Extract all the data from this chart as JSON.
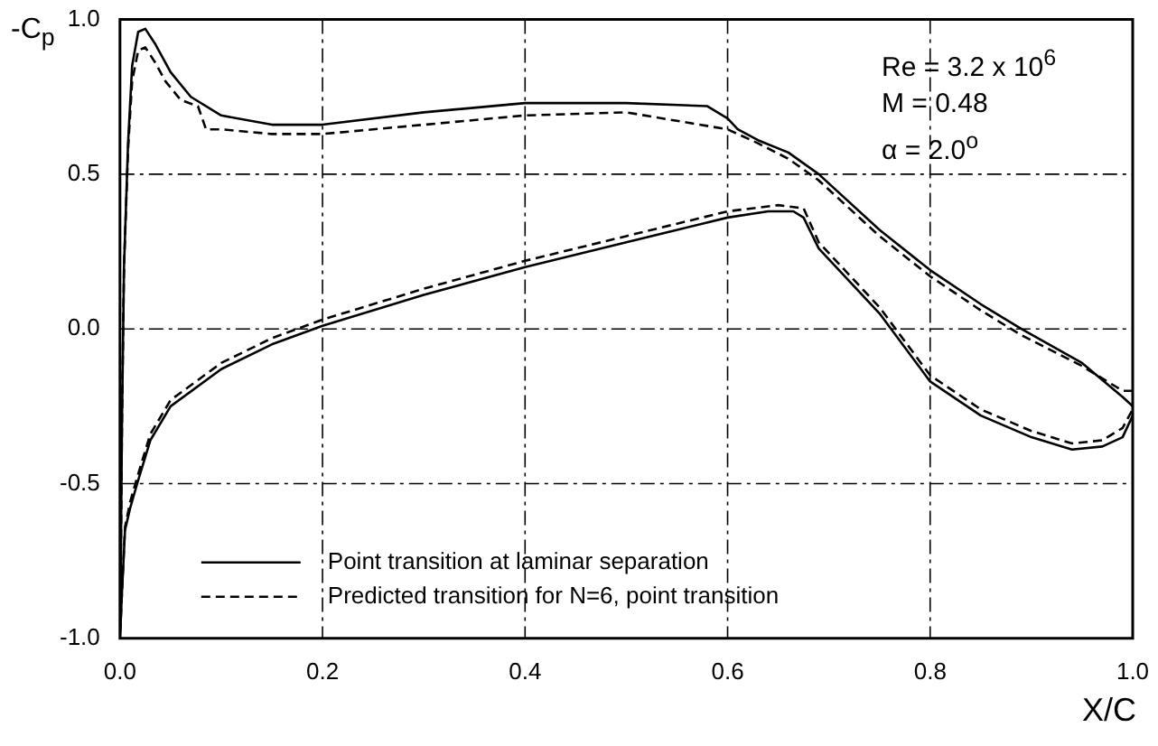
{
  "chart_data": {
    "type": "line",
    "xlabel": "X/C",
    "ylabel": "-C$_{p}$",
    "xlim": [
      0,
      1
    ],
    "ylim": [
      -1,
      1
    ],
    "xticks": [
      {
        "value": 0,
        "label": "0.0"
      },
      0.2,
      0.4,
      0.6,
      0.8,
      {
        "value": 1,
        "label": "1.0"
      }
    ],
    "yticks": [
      {
        "value": -1,
        "label": "-1.0"
      },
      -0.5,
      {
        "value": 0,
        "label": "0.0"
      },
      0.5,
      {
        "value": 1,
        "label": "1.0"
      }
    ],
    "grid": true,
    "legend": "bottom left",
    "marker": "none",
    "annotations": [
      "Re = 3.2 x 10$^{6}$",
      "M = 0.48",
      "α = 2.0$^{o}$"
    ],
    "series": [
      {
        "name": "Point transition at laminar separation",
        "color": "#000000",
        "line_style": "solid",
        "x": [
          1.0,
          0.99,
          0.95,
          0.89,
          0.85,
          0.8,
          0.75,
          0.69,
          0.66,
          0.63,
          0.61,
          0.6,
          0.58,
          0.5,
          0.4,
          0.3,
          0.2,
          0.15,
          0.1,
          0.07,
          0.05,
          0.035,
          0.025,
          0.018,
          0.012,
          0.008,
          0.004,
          0.002,
          0.001,
          0.0,
          0.002,
          0.005,
          0.01,
          0.017,
          0.03,
          0.05,
          0.1,
          0.15,
          0.2,
          0.3,
          0.4,
          0.5,
          0.6,
          0.64,
          0.665,
          0.675,
          0.69,
          0.75,
          0.8,
          0.85,
          0.9,
          0.94,
          0.97,
          0.99,
          1.0
        ],
        "values": [
          -0.25,
          -0.22,
          -0.11,
          0.0,
          0.08,
          0.19,
          0.32,
          0.5,
          0.57,
          0.61,
          0.645,
          0.68,
          0.72,
          0.73,
          0.73,
          0.7,
          0.66,
          0.66,
          0.69,
          0.75,
          0.83,
          0.92,
          0.97,
          0.96,
          0.85,
          0.6,
          0.2,
          -0.3,
          -0.7,
          -1.0,
          -0.85,
          -0.65,
          -0.58,
          -0.5,
          -0.36,
          -0.25,
          -0.13,
          -0.05,
          0.01,
          0.11,
          0.2,
          0.28,
          0.36,
          0.38,
          0.38,
          0.36,
          0.26,
          0.05,
          -0.17,
          -0.28,
          -0.35,
          -0.39,
          -0.38,
          -0.35,
          -0.28
        ]
      },
      {
        "name": "Predicted transition for N=6, point transition",
        "color": "#000000",
        "line_style": "dashed",
        "x": [
          1.0,
          0.99,
          0.95,
          0.89,
          0.85,
          0.8,
          0.75,
          0.69,
          0.66,
          0.63,
          0.6,
          0.5,
          0.4,
          0.3,
          0.2,
          0.15,
          0.1,
          0.085,
          0.077,
          0.06,
          0.045,
          0.035,
          0.025,
          0.018,
          0.012,
          0.008,
          0.004,
          0.002,
          0.001,
          0.0,
          0.002,
          0.005,
          0.01,
          0.017,
          0.03,
          0.05,
          0.1,
          0.15,
          0.2,
          0.3,
          0.4,
          0.5,
          0.6,
          0.65,
          0.675,
          0.69,
          0.75,
          0.8,
          0.85,
          0.9,
          0.94,
          0.97,
          0.99,
          1.0
        ],
        "values": [
          -0.2,
          -0.2,
          -0.12,
          -0.02,
          0.06,
          0.17,
          0.3,
          0.48,
          0.55,
          0.6,
          0.645,
          0.7,
          0.69,
          0.66,
          0.63,
          0.63,
          0.645,
          0.645,
          0.72,
          0.74,
          0.8,
          0.86,
          0.91,
          0.9,
          0.8,
          0.58,
          0.2,
          -0.3,
          -0.7,
          -1.0,
          -0.85,
          -0.64,
          -0.56,
          -0.48,
          -0.34,
          -0.23,
          -0.11,
          -0.03,
          0.03,
          0.13,
          0.22,
          0.3,
          0.38,
          0.4,
          0.39,
          0.28,
          0.07,
          -0.15,
          -0.26,
          -0.33,
          -0.37,
          -0.36,
          -0.32,
          -0.26
        ]
      }
    ]
  }
}
